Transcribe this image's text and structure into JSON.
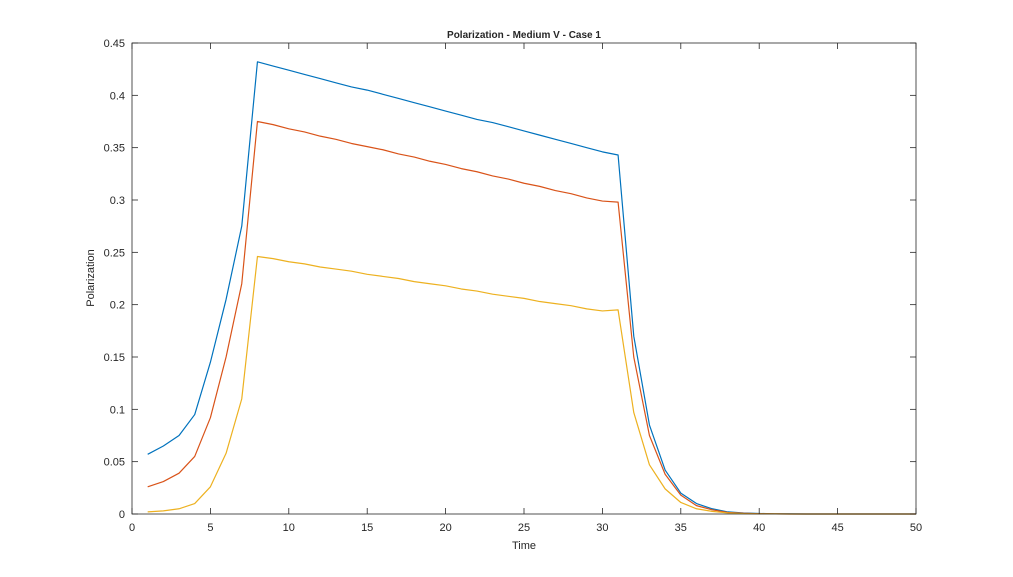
{
  "chart_data": {
    "type": "line",
    "title": "Polarization - Medium V - Case 1",
    "xlabel": "Time",
    "ylabel": "Polarization",
    "xlim": [
      0,
      50
    ],
    "ylim": [
      0,
      0.45
    ],
    "xticks": [
      0,
      5,
      10,
      15,
      20,
      25,
      30,
      35,
      40,
      45,
      50
    ],
    "yticks": [
      0,
      0.05,
      0.1,
      0.15,
      0.2,
      0.25,
      0.3,
      0.35,
      0.4,
      0.45
    ],
    "xtick_labels": [
      "0",
      "5",
      "10",
      "15",
      "20",
      "25",
      "30",
      "35",
      "40",
      "45",
      "50"
    ],
    "ytick_labels": [
      "0",
      "0.05",
      "0.1",
      "0.15",
      "0.2",
      "0.25",
      "0.3",
      "0.35",
      "0.4",
      "0.45"
    ],
    "grid": false,
    "box": true,
    "x": [
      1,
      2,
      3,
      4,
      5,
      6,
      7,
      8,
      9,
      10,
      11,
      12,
      13,
      14,
      15,
      16,
      17,
      18,
      19,
      20,
      21,
      22,
      23,
      24,
      25,
      26,
      27,
      28,
      29,
      30,
      31,
      32,
      33,
      34,
      35,
      36,
      37,
      38,
      39,
      40,
      41,
      42,
      43,
      44,
      45,
      46,
      47,
      48,
      49,
      50
    ],
    "series": [
      {
        "color": "#0072BD",
        "values": [
          0.057,
          0.065,
          0.075,
          0.095,
          0.145,
          0.205,
          0.275,
          0.432,
          0.428,
          0.424,
          0.42,
          0.416,
          0.412,
          0.408,
          0.405,
          0.401,
          0.397,
          0.393,
          0.389,
          0.385,
          0.381,
          0.377,
          0.374,
          0.37,
          0.366,
          0.362,
          0.358,
          0.354,
          0.35,
          0.346,
          0.343,
          0.17,
          0.085,
          0.042,
          0.02,
          0.01,
          0.005,
          0.002,
          0.001,
          0.0005,
          0.0002,
          0.0001,
          0,
          0,
          0,
          0,
          0,
          0,
          0,
          0
        ]
      },
      {
        "color": "#D95319",
        "values": [
          0.026,
          0.031,
          0.039,
          0.055,
          0.092,
          0.15,
          0.22,
          0.375,
          0.372,
          0.368,
          0.365,
          0.361,
          0.358,
          0.354,
          0.351,
          0.348,
          0.344,
          0.341,
          0.337,
          0.334,
          0.33,
          0.327,
          0.323,
          0.32,
          0.316,
          0.313,
          0.309,
          0.306,
          0.302,
          0.299,
          0.298,
          0.15,
          0.075,
          0.038,
          0.018,
          0.008,
          0.004,
          0.0015,
          0.0007,
          0.0003,
          0.0001,
          0,
          0,
          0,
          0,
          0,
          0,
          0,
          0,
          0
        ]
      },
      {
        "color": "#EDB120",
        "values": [
          0.002,
          0.003,
          0.005,
          0.01,
          0.026,
          0.058,
          0.11,
          0.246,
          0.244,
          0.241,
          0.239,
          0.236,
          0.234,
          0.232,
          0.229,
          0.227,
          0.225,
          0.222,
          0.22,
          0.218,
          0.215,
          0.213,
          0.21,
          0.208,
          0.206,
          0.203,
          0.201,
          0.199,
          0.196,
          0.194,
          0.195,
          0.097,
          0.047,
          0.024,
          0.011,
          0.005,
          0.0025,
          0.001,
          0.0004,
          0.0002,
          0.0001,
          0,
          0,
          0,
          0,
          0,
          0,
          0,
          0,
          0
        ]
      }
    ]
  }
}
